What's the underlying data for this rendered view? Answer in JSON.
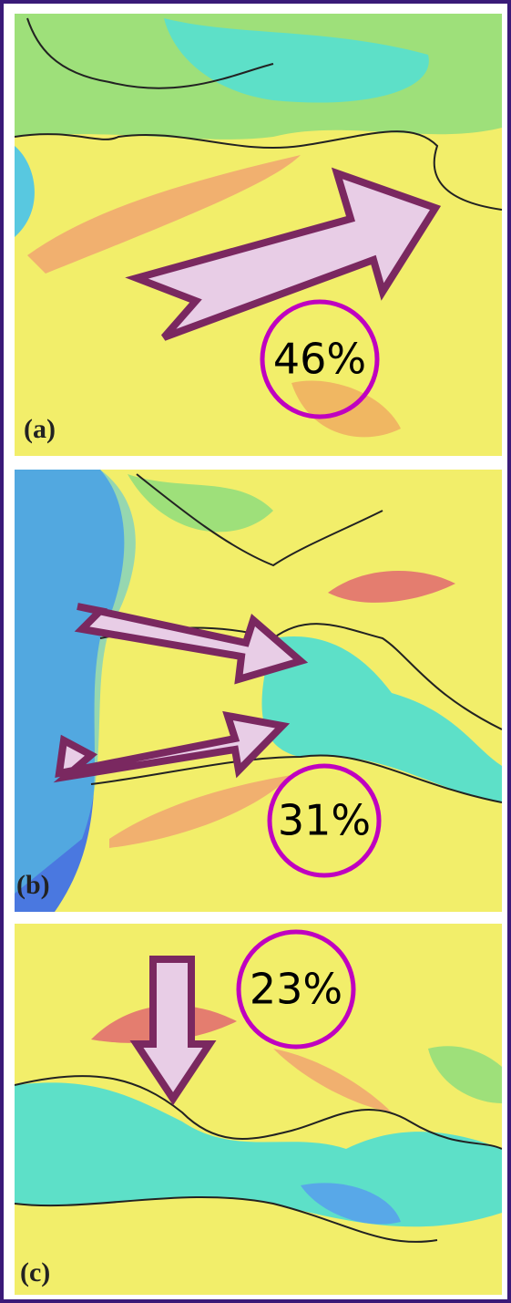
{
  "panels": [
    {
      "label": "(a)",
      "percent": "46%"
    },
    {
      "label": "(b)",
      "percent": "31%"
    },
    {
      "label": "(c)",
      "percent": "23%"
    }
  ]
}
